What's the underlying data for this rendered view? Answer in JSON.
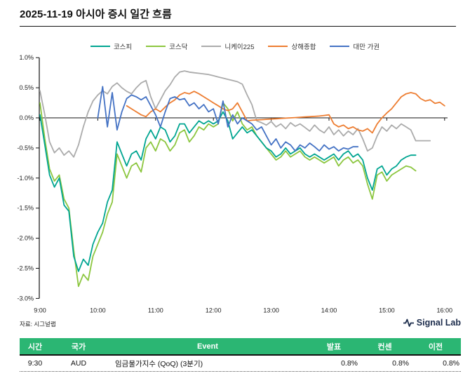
{
  "title": "2025-11-19 아시아 증시 일간 흐름",
  "source_note": "자료: 시그널랩",
  "brand": {
    "name": "Signal Lab",
    "icon": "pulse-icon",
    "color": "#1b2b4b"
  },
  "chart_data": {
    "type": "line",
    "title": "",
    "xlabel": "",
    "ylabel": "",
    "ylim": [
      -3.0,
      1.0
    ],
    "grid": false,
    "legend_position": "top",
    "y_ticks": [
      "1.0%",
      "0.5%",
      "0.0%",
      "-0.5%",
      "-1.0%",
      "-1.5%",
      "-2.0%",
      "-2.5%",
      "-3.0%"
    ],
    "x_ticks": [
      "9:00",
      "10:00",
      "11:00",
      "12:00",
      "13:00",
      "14:00",
      "15:00",
      "16:00"
    ],
    "x_unit": "time-of-day, ticks hourly from 9:00",
    "series": [
      {
        "name": "코스피",
        "color": "#00A591",
        "start_min": 0,
        "step_min": 5,
        "values": [
          0.05,
          -0.45,
          -0.95,
          -1.15,
          -1.0,
          -1.45,
          -1.55,
          -2.3,
          -2.55,
          -2.35,
          -2.45,
          -2.1,
          -1.9,
          -1.75,
          -1.4,
          -1.2,
          -0.4,
          -0.6,
          -0.8,
          -0.6,
          -0.55,
          -0.7,
          -0.35,
          -0.2,
          -0.35,
          -0.15,
          -0.2,
          -0.4,
          -0.3,
          -0.1,
          -0.1,
          -0.25,
          -0.15,
          -0.05,
          -0.1,
          -0.05,
          -0.1,
          -0.05,
          0.1,
          -0.05,
          -0.35,
          -0.25,
          -0.15,
          -0.25,
          -0.2,
          -0.3,
          -0.4,
          -0.5,
          -0.55,
          -0.65,
          -0.6,
          -0.5,
          -0.6,
          -0.55,
          -0.5,
          -0.6,
          -0.65,
          -0.6,
          -0.65,
          -0.7,
          -0.65,
          -0.6,
          -0.7,
          -0.6,
          -0.55,
          -0.65,
          -0.6,
          -0.7,
          -1.0,
          -1.2,
          -0.85,
          -0.8,
          -0.95,
          -0.85,
          -0.8,
          -0.7,
          -0.65,
          -0.62,
          -0.62
        ]
      },
      {
        "name": "코스닥",
        "color": "#8CC63F",
        "start_min": 0,
        "step_min": 5,
        "values": [
          0.25,
          -0.35,
          -0.85,
          -1.05,
          -0.95,
          -1.35,
          -1.5,
          -2.2,
          -2.8,
          -2.6,
          -2.7,
          -2.3,
          -2.1,
          -1.9,
          -1.6,
          -1.4,
          -0.6,
          -0.8,
          -1.0,
          -0.8,
          -0.75,
          -0.9,
          -0.5,
          -0.4,
          -0.55,
          -0.35,
          -0.4,
          -0.55,
          -0.45,
          -0.25,
          -0.2,
          -0.4,
          -0.3,
          -0.15,
          -0.2,
          -0.1,
          -0.15,
          -0.1,
          0.25,
          0.15,
          -0.05,
          0.1,
          -0.1,
          -0.2,
          -0.15,
          -0.3,
          -0.4,
          -0.5,
          -0.6,
          -0.7,
          -0.65,
          -0.55,
          -0.65,
          -0.6,
          -0.55,
          -0.65,
          -0.7,
          -0.65,
          -0.7,
          -0.75,
          -0.7,
          -0.65,
          -0.8,
          -0.7,
          -0.65,
          -0.75,
          -0.7,
          -0.8,
          -1.1,
          -1.35,
          -0.95,
          -0.9,
          -1.05,
          -0.95,
          -0.9,
          -0.85,
          -0.8,
          -0.82,
          -0.88
        ]
      },
      {
        "name": "니케이225",
        "color": "#ABABAB",
        "start_min": 0,
        "step_min": 5,
        "values": [
          0.45,
          0.05,
          -0.4,
          -0.58,
          -0.5,
          -0.62,
          -0.55,
          -0.65,
          -0.45,
          -0.15,
          0.1,
          0.28,
          0.38,
          0.45,
          0.4,
          0.52,
          0.58,
          0.5,
          0.44,
          0.4,
          0.5,
          0.58,
          0.62,
          0.35,
          0.15,
          0.3,
          0.45,
          0.55,
          0.68,
          0.76,
          0.78,
          0.76,
          0.75,
          0.74,
          0.73,
          0.72,
          0.7,
          0.68,
          0.66,
          0.64,
          0.62,
          0.6,
          0.56,
          0.38,
          0.22,
          -0.05,
          -0.08,
          -0.12,
          -0.06,
          -0.15,
          -0.1,
          -0.18,
          -0.08,
          -0.14,
          -0.1,
          -0.16,
          -0.22,
          -0.12,
          -0.2,
          -0.25,
          -0.15,
          -0.28,
          -0.2,
          -0.3,
          -0.22,
          -0.28,
          -0.18,
          -0.35,
          -0.55,
          -0.5,
          -0.3,
          -0.15,
          -0.22,
          -0.12,
          -0.18,
          -0.1,
          -0.15,
          -0.2,
          -0.38,
          -0.38,
          -0.38,
          -0.38
        ]
      },
      {
        "name": "상해종합",
        "color": "#ED7D31",
        "start_min": 90,
        "step_min": 5,
        "values": [
          0.2,
          0.15,
          0.1,
          0.05,
          0.02,
          0.1,
          0.15,
          0.1,
          0.18,
          0.25,
          0.3,
          0.38,
          0.42,
          0.4,
          0.44,
          0.4,
          0.35,
          0.3,
          0.25,
          0.2,
          0.15,
          0.12,
          0.15,
          0.25,
          0.1,
          -0.05,
          -0.04,
          -0.035,
          -0.03,
          -0.025,
          -0.02,
          -0.015,
          -0.01,
          -0.005,
          0,
          0.005,
          0.01,
          0.015,
          0.02,
          0.025,
          0.03,
          0.04,
          0.05,
          -0.1,
          -0.15,
          -0.12,
          -0.18,
          -0.15,
          -0.2,
          -0.22,
          -0.18,
          -0.25,
          -0.1,
          0,
          0.08,
          0.15,
          0.25,
          0.35,
          0.4,
          0.42,
          0.4,
          0.32,
          0.28,
          0.3,
          0.24,
          0.26,
          0.2
        ]
      },
      {
        "name": "대만 가권",
        "color": "#4472C4",
        "start_min": 60,
        "step_min": 5,
        "values": [
          0,
          0.52,
          -0.15,
          0.42,
          -0.2,
          0.1,
          0.32,
          0.38,
          0.35,
          0.3,
          0.35,
          0.2,
          0.05,
          -0.15,
          0.1,
          0.32,
          0.35,
          0.3,
          0.32,
          0.2,
          0.25,
          0.15,
          0.22,
          0.1,
          0.15,
          -0.1,
          0.28,
          -0.15,
          0.05,
          -0.1,
          0,
          -0.05,
          -0.1,
          -0.2,
          -0.15,
          -0.3,
          -0.45,
          -0.35,
          -0.5,
          -0.4,
          -0.45,
          -0.55,
          -0.45,
          -0.5,
          -0.42,
          -0.48,
          -0.55,
          -0.45,
          -0.52,
          -0.48,
          -0.55,
          -0.5,
          -0.52,
          -0.48,
          -0.48
        ]
      }
    ]
  },
  "event_table": {
    "accent_color": "#2BB673",
    "headers": [
      "시간",
      "국가",
      "Event",
      "발표",
      "컨센",
      "이전"
    ],
    "rows": [
      [
        "9:30",
        "AUD",
        "임금물가지수 (QoQ) (3분기)",
        "0.8%",
        "0.8%",
        "0.8%"
      ]
    ]
  }
}
